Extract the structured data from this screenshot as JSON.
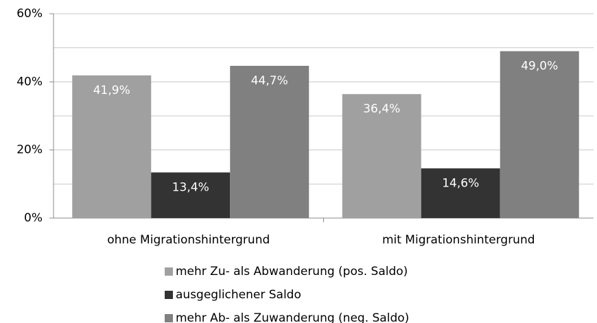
{
  "chart_data": {
    "type": "bar",
    "categories": [
      "ohne Migrationshintergrund",
      "mit Migrationshintergrund"
    ],
    "series": [
      {
        "name": "mehr Zu- als Abwanderung (pos. Saldo)",
        "color": "#a0a0a0",
        "values": [
          41.9,
          36.4
        ],
        "value_labels": [
          "41,9%",
          "36,4%"
        ]
      },
      {
        "name": "ausgeglichener Saldo",
        "color": "#333333",
        "values": [
          13.4,
          14.6
        ],
        "value_labels": [
          "13,4%",
          "14,6%"
        ]
      },
      {
        "name": "mehr Ab- als Zuwanderung (neg. Saldo)",
        "color": "#808080",
        "values": [
          44.7,
          49.0
        ],
        "value_labels": [
          "44,7%",
          "49,0%"
        ]
      }
    ],
    "ylim": [
      0,
      60
    ],
    "yticks": [
      {
        "value": 0,
        "label": "0%"
      },
      {
        "value": 20,
        "label": "20%"
      },
      {
        "value": 40,
        "label": "40%"
      },
      {
        "value": 60,
        "label": "60%"
      }
    ],
    "grid": true,
    "legend": "bottom"
  }
}
